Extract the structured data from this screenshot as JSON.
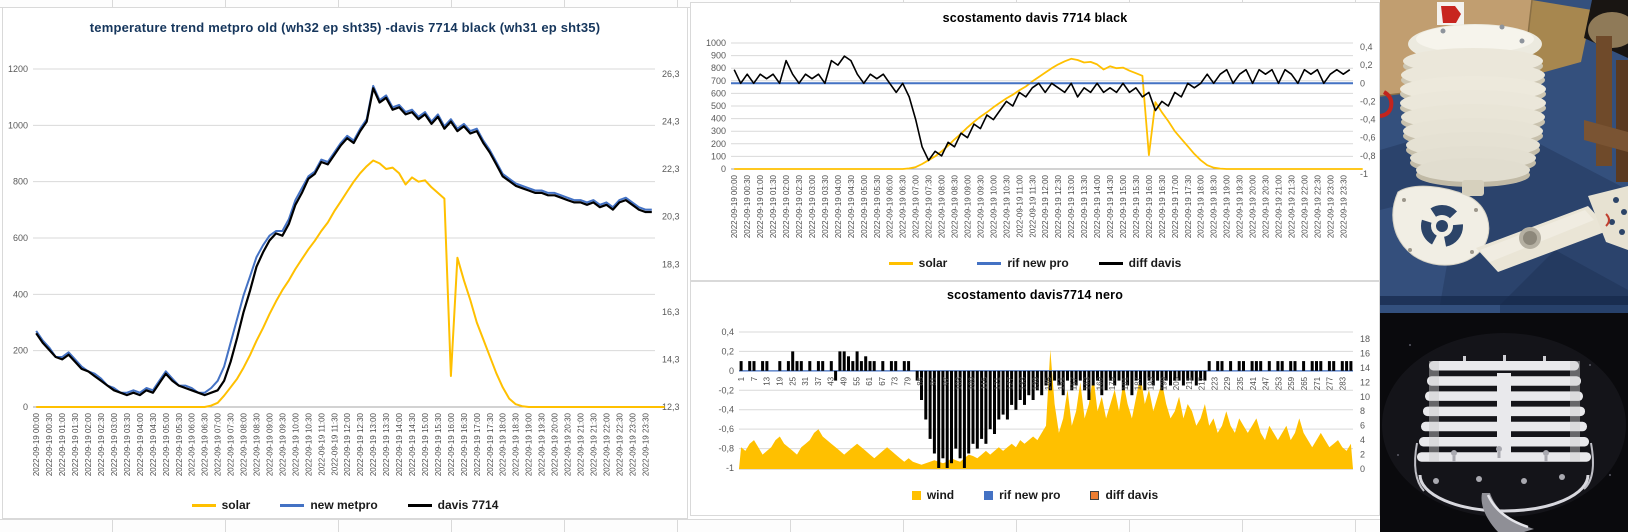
{
  "colors": {
    "accent_yellow": "#FFC000",
    "accent_blue": "#4472C4",
    "series_black": "#000000",
    "legend_orange": "#ED7D31",
    "gridline": "#D9D9D9",
    "axis_line": "#BFBFBF",
    "tick_text": "#595959"
  },
  "timestamps": [
    "2022-09-19 00:00",
    "2022-09-19 00:30",
    "2022-09-19 01:00",
    "2022-09-19 01:30",
    "2022-09-19 02:00",
    "2022-09-19 02:30",
    "2022-09-19 03:00",
    "2022-09-19 03:30",
    "2022-09-19 04:00",
    "2022-09-19 04:30",
    "2022-09-19 05:00",
    "2022-09-19 05:30",
    "2022-09-19 06:00",
    "2022-09-19 06:30",
    "2022-09-19 07:00",
    "2022-09-19 07:30",
    "2022-09-19 08:00",
    "2022-09-19 08:30",
    "2022-09-19 09:00",
    "2022-09-19 09:30",
    "2022-09-19 10:00",
    "2022-09-19 10:30",
    "2022-09-19 11:00",
    "2022-09-19 11:30",
    "2022-09-19 12:00",
    "2022-09-19 12:30",
    "2022-09-19 13:00",
    "2022-09-19 13:30",
    "2022-09-19 14:00",
    "2022-09-19 14:30",
    "2022-09-19 15:00",
    "2022-09-19 15:30",
    "2022-09-19 16:00",
    "2022-09-19 16:30",
    "2022-09-19 17:00",
    "2022-09-19 17:30",
    "2022-09-19 18:00",
    "2022-09-19 18:30",
    "2022-09-19 19:00",
    "2022-09-19 19:30",
    "2022-09-19 20:00",
    "2022-09-19 20:30",
    "2022-09-19 21:00",
    "2022-09-19 21:30",
    "2022-09-19 22:00",
    "2022-09-19 22:30",
    "2022-09-19 23:00",
    "2022-09-19 23:30"
  ],
  "shared": {
    "solar_wm2": [
      0,
      0,
      0,
      0,
      0,
      0,
      0,
      0,
      0,
      0,
      0,
      0,
      0,
      0,
      0,
      0,
      0,
      0,
      0,
      0,
      0,
      0,
      0,
      0,
      0,
      0,
      0,
      5,
      15,
      40,
      70,
      100,
      140,
      185,
      235,
      280,
      330,
      375,
      415,
      450,
      490,
      525,
      560,
      590,
      625,
      655,
      695,
      730,
      765,
      800,
      830,
      855,
      875,
      865,
      845,
      850,
      830,
      790,
      815,
      800,
      805,
      780,
      760,
      740,
      110,
      530,
      450,
      380,
      300,
      240,
      180,
      120,
      70,
      30,
      10,
      3,
      0,
      0,
      0,
      0,
      0,
      0,
      0,
      0,
      0,
      0,
      0,
      0,
      0,
      0,
      0,
      0,
      0,
      0,
      0,
      0,
      0,
      0
    ]
  },
  "chart_data": [
    {
      "id": "chart-temp-trend",
      "type": "line",
      "title": "temperature trend metpro old (wh32 ep sht35) -davis 7714 black (wh31 ep sht35)",
      "title_color": "#16365c",
      "x_labels_key": "timestamps",
      "n_points": 96,
      "left_axis": {
        "labels": [
          "0",
          "200",
          "400",
          "600",
          "800",
          "1000",
          "1200"
        ],
        "values": [
          0,
          200,
          400,
          600,
          800,
          1000,
          1200
        ],
        "range": [
          0,
          1200
        ]
      },
      "right_axis": {
        "labels": [
          "26,3",
          "24,3",
          "22,3",
          "20,3",
          "18,3",
          "16,3",
          "14,3",
          "12,3"
        ],
        "values": [
          26.3,
          24.3,
          22.3,
          20.3,
          18.3,
          16.3,
          14.3,
          12.3
        ],
        "range": [
          12.3,
          26.51
        ]
      },
      "series": [
        {
          "name": "solar",
          "color": "#FFC000",
          "axis": "left",
          "render": "line",
          "width": 2,
          "values_key": "shared.solar_wm2"
        },
        {
          "name": "new metpro",
          "color": "#4472C4",
          "axis": "right",
          "render": "line",
          "width": 2,
          "values": [
            15.5,
            15.1,
            14.8,
            14.4,
            14.4,
            14.6,
            14.3,
            14.0,
            13.8,
            13.7,
            13.5,
            13.2,
            13.1,
            12.9,
            12.9,
            13.0,
            12.9,
            13.1,
            13.0,
            13.4,
            13.8,
            13.5,
            13.2,
            13.2,
            13.1,
            12.9,
            12.9,
            13.1,
            13.4,
            14.0,
            15.0,
            16.0,
            17.0,
            17.8,
            18.6,
            19.1,
            19.5,
            19.7,
            19.7,
            20.2,
            21.0,
            21.5,
            22.0,
            22.2,
            22.7,
            22.6,
            23.0,
            23.4,
            23.7,
            23.5,
            24.0,
            24.4,
            25.8,
            25.2,
            25.4,
            24.9,
            25.0,
            24.7,
            24.8,
            24.5,
            24.7,
            24.3,
            24.6,
            24.1,
            24.4,
            24.0,
            24.2,
            23.9,
            24.0,
            23.5,
            23.1,
            22.6,
            22.1,
            21.9,
            21.7,
            21.6,
            21.5,
            21.4,
            21.4,
            21.3,
            21.3,
            21.2,
            21.1,
            21.0,
            21.0,
            20.9,
            21.0,
            20.8,
            20.9,
            20.7,
            21.0,
            21.1,
            20.9,
            20.7,
            20.6,
            20.6
          ]
        },
        {
          "name": "davis 7714",
          "color": "#000000",
          "axis": "right",
          "render": "line",
          "width": 2.2,
          "values": [
            15.4,
            15.0,
            14.7,
            14.4,
            14.3,
            14.5,
            14.2,
            13.9,
            13.8,
            13.6,
            13.4,
            13.2,
            13.0,
            12.9,
            12.8,
            12.9,
            12.8,
            13.0,
            12.9,
            13.3,
            13.7,
            13.4,
            13.2,
            13.1,
            13.0,
            12.9,
            12.8,
            12.9,
            13.0,
            13.4,
            14.2,
            15.2,
            16.3,
            17.2,
            18.2,
            18.8,
            19.3,
            19.6,
            19.5,
            20.0,
            20.8,
            21.3,
            21.9,
            22.1,
            22.6,
            22.5,
            22.9,
            23.3,
            23.6,
            23.4,
            23.9,
            24.3,
            25.7,
            25.1,
            25.3,
            24.8,
            24.9,
            24.6,
            24.7,
            24.4,
            24.6,
            24.2,
            24.5,
            24.0,
            24.3,
            23.9,
            24.1,
            23.8,
            23.9,
            23.4,
            23.0,
            22.5,
            22.0,
            21.8,
            21.6,
            21.5,
            21.4,
            21.3,
            21.3,
            21.2,
            21.2,
            21.1,
            21.0,
            20.9,
            20.9,
            20.8,
            20.9,
            20.7,
            20.8,
            20.6,
            20.9,
            21.0,
            20.8,
            20.6,
            20.5,
            20.5
          ]
        }
      ]
    },
    {
      "id": "chart-scostamento-black",
      "type": "line",
      "title": "scostamento davis 7714 black",
      "title_color": "#000000",
      "x_labels_key": "timestamps",
      "n_points": 96,
      "left_axis": {
        "labels": [
          "0",
          "100",
          "200",
          "300",
          "400",
          "500",
          "600",
          "700",
          "800",
          "900",
          "1000"
        ],
        "values": [
          0,
          100,
          200,
          300,
          400,
          500,
          600,
          700,
          800,
          900,
          1000
        ],
        "range": [
          0,
          1000
        ]
      },
      "right_axis": {
        "labels": [
          "0,4",
          "0,2",
          "0",
          "-0,2",
          "-0,4",
          "-0,6",
          "-0,8",
          "-1"
        ],
        "values": [
          0.4,
          0.2,
          0,
          -0.2,
          -0.4,
          -0.6,
          -0.8,
          -1
        ],
        "range": [
          -1,
          0.4
        ]
      },
      "series": [
        {
          "name": "solar",
          "color": "#FFC000",
          "axis": "left",
          "render": "line",
          "width": 1.8,
          "values_key": "shared.solar_wm2"
        },
        {
          "name": "rif new pro",
          "color": "#4472C4",
          "axis": "right",
          "render": "line",
          "width": 2,
          "const_value": 0
        },
        {
          "name": "diff davis",
          "color": "#000000",
          "axis": "right",
          "render": "line",
          "width": 1.6,
          "values": [
            0.15,
            0.0,
            0.1,
            0.0,
            0.1,
            0.05,
            0.1,
            0.0,
            0.25,
            0.1,
            0.0,
            0.1,
            0.05,
            0.1,
            0.0,
            0.25,
            0.2,
            0.3,
            0.25,
            0.1,
            0.0,
            0.1,
            0.05,
            0.1,
            0.0,
            -0.1,
            0.0,
            -0.15,
            -0.4,
            -0.7,
            -0.85,
            -0.75,
            -0.8,
            -0.65,
            -0.7,
            -0.55,
            -0.6,
            -0.45,
            -0.5,
            -0.35,
            -0.4,
            -0.3,
            -0.2,
            -0.25,
            -0.1,
            -0.15,
            -0.05,
            0.0,
            -0.1,
            0.0,
            -0.05,
            -0.1,
            0.0,
            -0.15,
            -0.05,
            -0.1,
            0.0,
            -0.1,
            -0.05,
            -0.1,
            0.0,
            -0.1,
            -0.05,
            -0.15,
            -0.1,
            -0.3,
            -0.2,
            -0.25,
            -0.1,
            -0.15,
            0.0,
            -0.05,
            0.0,
            0.1,
            0.0,
            0.1,
            0.15,
            0.0,
            0.1,
            0.15,
            0.0,
            0.15,
            0.1,
            0.15,
            0.0,
            0.15,
            0.1,
            0.0,
            0.15,
            0.1,
            0.15,
            0.0,
            0.1,
            0.15,
            0.1,
            0.15
          ]
        }
      ]
    },
    {
      "id": "chart-scostamento-nero",
      "type": "combo",
      "title": "scostamento davis7714 nero",
      "title_color": "#000000",
      "x_labels": [
        "1",
        "7",
        "13",
        "19",
        "25",
        "31",
        "37",
        "43",
        "49",
        "55",
        "61",
        "67",
        "73",
        "79",
        "85",
        "91",
        "97",
        "103",
        "109",
        "115",
        "121",
        "127",
        "133",
        "139",
        "145",
        "151",
        "157",
        "163",
        "169",
        "175",
        "181",
        "187",
        "193",
        "199",
        "205",
        "211",
        "217",
        "223",
        "229",
        "235",
        "241",
        "247",
        "253",
        "259",
        "265",
        "271",
        "277",
        "283"
      ],
      "n_points": 143,
      "left_axis": {
        "labels": [
          "0,4",
          "0,2",
          "0",
          "-0,2",
          "-0,4",
          "-0,6",
          "-0,8",
          "-1"
        ],
        "values": [
          0.4,
          0.2,
          0,
          -0.2,
          -0.4,
          -0.6,
          -0.8,
          -1
        ],
        "range": [
          -1,
          0.4
        ]
      },
      "right_axis": {
        "labels": [
          "18",
          "16",
          "14",
          "12",
          "10",
          "8",
          "6",
          "4",
          "2",
          "0"
        ],
        "values": [
          18,
          16,
          14,
          12,
          10,
          8,
          6,
          4,
          2,
          0
        ],
        "range": [
          0,
          18
        ]
      },
      "series": [
        {
          "name": "wind",
          "color": "#FFC000",
          "axis": "right",
          "render": "area",
          "values": [
            3,
            2.5,
            3.5,
            4,
            3,
            2,
            2.5,
            3,
            4,
            4.5,
            3.5,
            3,
            2.5,
            2,
            3,
            3.5,
            4,
            5,
            5.5,
            4.5,
            4,
            3.5,
            3,
            2.5,
            2,
            2.5,
            3,
            3.5,
            3,
            2.5,
            2,
            1.5,
            2,
            2.5,
            3,
            2.5,
            2,
            1.5,
            1,
            1.5,
            1,
            0.8,
            0.6,
            0.8,
            1,
            1.2,
            1,
            0.8,
            1,
            1.5,
            1.2,
            1,
            1.5,
            2,
            1.8,
            1.5,
            2,
            2.5,
            2,
            2.5,
            3,
            2.5,
            3,
            3.5,
            3,
            4,
            3.5,
            4,
            4.5,
            4,
            5,
            6,
            16.5,
            9,
            5,
            7,
            11,
            6,
            8,
            12,
            7,
            9,
            13,
            8,
            10,
            7,
            9,
            11,
            8,
            12,
            9,
            7,
            10,
            13,
            9,
            11,
            8,
            10,
            12,
            9,
            7,
            8,
            10,
            7,
            9,
            8,
            6,
            7,
            9,
            6,
            7,
            5,
            6,
            8,
            6,
            5,
            7,
            6,
            5,
            6,
            7,
            5,
            4,
            6,
            5,
            4,
            5,
            6,
            4,
            5,
            7,
            5,
            4,
            3,
            4,
            5,
            4,
            3,
            3.5,
            4,
            3,
            2.5,
            3.5
          ]
        },
        {
          "name": "rif new pro",
          "color": "#4472C4",
          "axis": "left",
          "render": "line",
          "width": 1.2,
          "const_value": 0
        },
        {
          "name": "diff davis",
          "color": "#000000",
          "legend_color": "#ED7D31",
          "legend_border": "#404040",
          "axis": "left",
          "render": "bar",
          "values": [
            0.1,
            0,
            0.1,
            0.1,
            0,
            0.1,
            0.1,
            0,
            0,
            0.1,
            0,
            0.1,
            0.2,
            0.1,
            0.1,
            0,
            0.1,
            0,
            0.1,
            0.1,
            0,
            0.1,
            -0.1,
            0.2,
            0.2,
            0.15,
            0.1,
            0.2,
            0.1,
            0.15,
            0.1,
            0.1,
            0,
            0.1,
            0,
            0.1,
            0.1,
            0,
            0.1,
            0.1,
            0,
            -0.1,
            -0.3,
            -0.5,
            -0.7,
            -0.85,
            -1,
            -0.9,
            -1,
            -0.95,
            -0.8,
            -0.9,
            -1,
            -0.85,
            -0.75,
            -0.8,
            -0.7,
            -0.75,
            -0.6,
            -0.65,
            -0.5,
            -0.45,
            -0.5,
            -0.35,
            -0.4,
            -0.3,
            -0.35,
            -0.25,
            -0.3,
            -0.2,
            -0.25,
            -0.15,
            -0.2,
            -0.1,
            -0.15,
            -0.25,
            -0.1,
            -0.2,
            -0.15,
            -0.1,
            -0.2,
            -0.3,
            -0.15,
            -0.1,
            -0.25,
            -0.2,
            -0.1,
            -0.15,
            -0.1,
            -0.2,
            -0.15,
            -0.25,
            -0.1,
            -0.15,
            -0.2,
            -0.1,
            -0.15,
            -0.1,
            -0.2,
            -0.1,
            -0.15,
            -0.1,
            -0.1,
            -0.15,
            -0.1,
            -0.1,
            -0.15,
            -0.1,
            -0.1,
            0.1,
            0,
            0.1,
            0.1,
            0,
            0.1,
            0,
            0.1,
            0.1,
            0,
            0.1,
            0.1,
            0.1,
            0,
            0.1,
            0,
            0.1,
            0.1,
            0,
            0.1,
            0.1,
            0,
            0.1,
            0,
            0.1,
            0.1,
            0.1,
            0,
            0.1,
            0.1,
            0,
            0.1,
            0.1,
            0.1
          ]
        }
      ]
    }
  ],
  "photos": {
    "top_bg": "#34507D",
    "bottom_bg": "#0A0A0D"
  }
}
